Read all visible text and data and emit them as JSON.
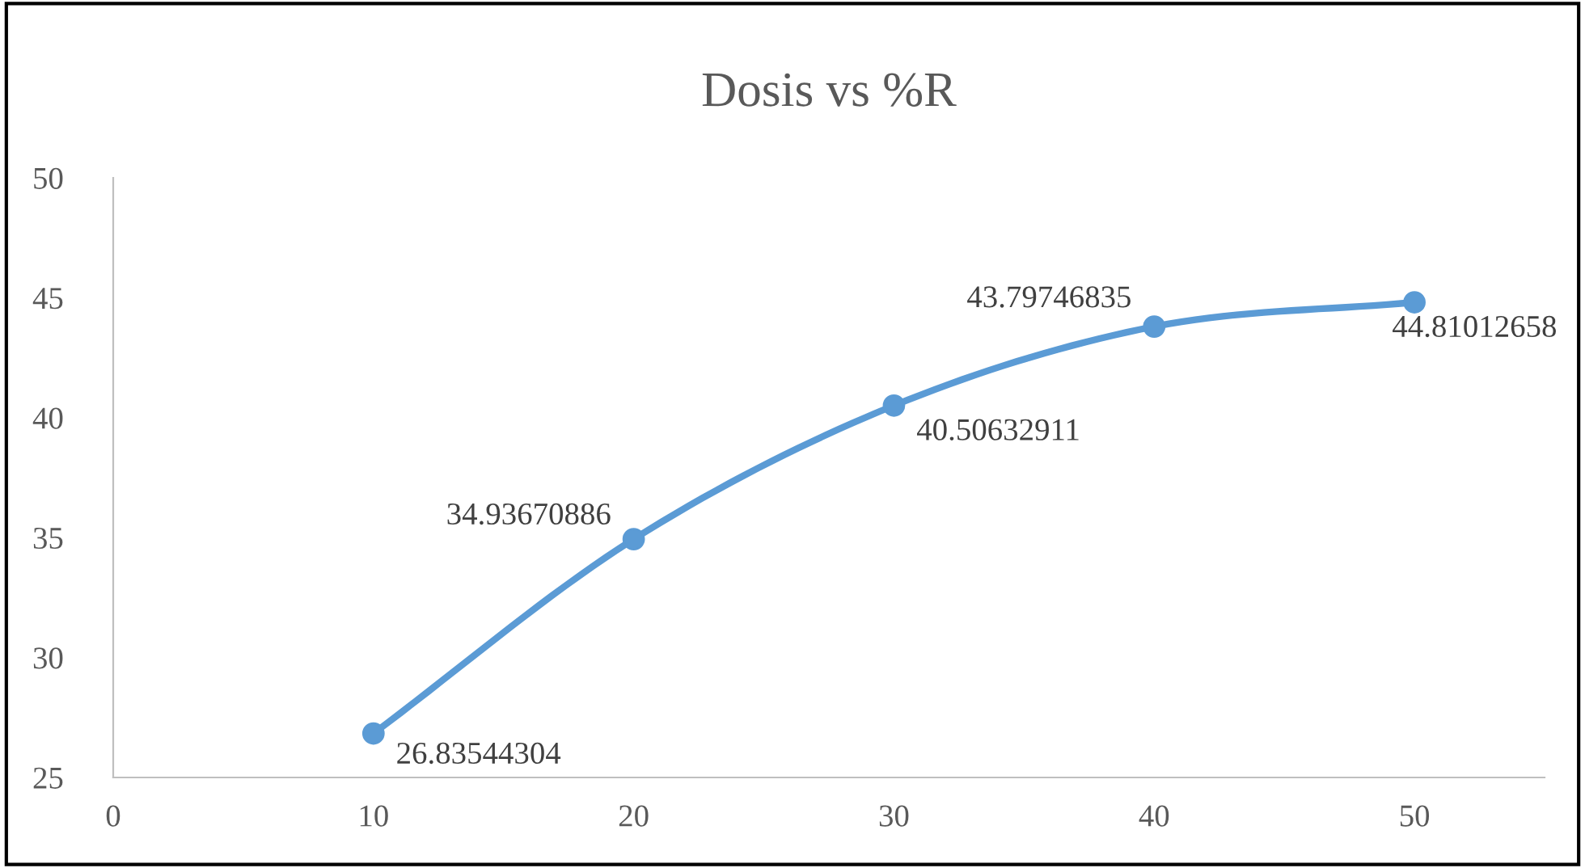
{
  "chart_data": {
    "type": "line",
    "title": "Dosis vs %R",
    "x": [
      10,
      20,
      30,
      40,
      50
    ],
    "series": [
      {
        "color": "#5b9bd5",
        "values": [
          26.83544304,
          34.93670886,
          40.50632911,
          43.79746835,
          44.81012658
        ]
      }
    ],
    "xlim": [
      0,
      55
    ],
    "xticks": [
      0,
      10,
      20,
      30,
      40,
      50
    ],
    "ylim": [
      25,
      50
    ],
    "yticks": [
      25,
      30,
      35,
      40,
      45,
      50
    ],
    "marker": "circle",
    "line_style": "solid",
    "grid": false,
    "data_labels": true
  }
}
